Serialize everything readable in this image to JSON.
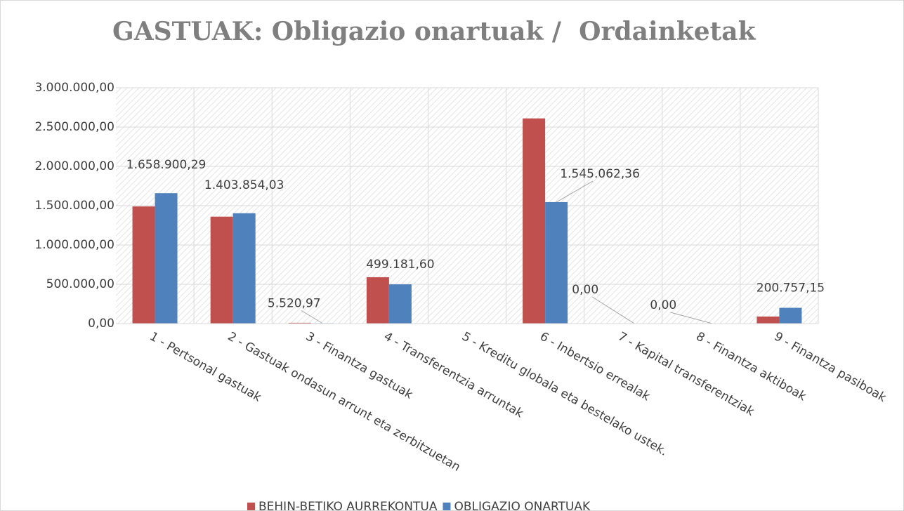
{
  "chart_data": {
    "type": "bar",
    "title": "GASTUAK: Obligazio onartuak /  Ordainketak",
    "categories": [
      "1 - Pertsonal gastuak",
      "2 - Gastuak ondasun arrunt eta zerbitzuetan",
      "3 - Finantza gastuak",
      "4 - Transferentzia arruntak",
      "5 - Kreditu globala eta bestelako ustek.",
      "6 - Inbertsio errealak",
      "7 - Kapital transferentziak",
      "8 - Finantza aktiboak",
      "9 - Finantza pasiboak"
    ],
    "series": [
      {
        "name": "BEHIN-BETIKO AURREKONTUA",
        "color": "#c0504d",
        "values": [
          1490000,
          1360000,
          10000,
          590000,
          0,
          2610000,
          0,
          0,
          90000
        ]
      },
      {
        "name": "OBLIGAZIO ONARTUAK",
        "color": "#4f81bd",
        "values": [
          1658900.29,
          1403854.03,
          5520.97,
          499181.6,
          null,
          1545062.36,
          0,
          0,
          200757.15
        ],
        "value_labels": [
          "1.658.900,29",
          "1.403.854,03",
          "5.520,97",
          "499.181,60",
          null,
          "1.545.062,36",
          "0,00",
          "0,00",
          "200.757,15"
        ]
      }
    ],
    "ylim": [
      0,
      3000000
    ],
    "yticks": [
      {
        "value": 0,
        "label": "0,00"
      },
      {
        "value": 500000,
        "label": "500.000,00"
      },
      {
        "value": 1000000,
        "label": "1.000.000,00"
      },
      {
        "value": 1500000,
        "label": "1.500.000,00"
      },
      {
        "value": 2000000,
        "label": "2.000.000,00"
      },
      {
        "value": 2500000,
        "label": "2.500.000,00"
      },
      {
        "value": 3000000,
        "label": "3.000.000,00"
      }
    ],
    "grid": true,
    "legend": "bottom"
  }
}
